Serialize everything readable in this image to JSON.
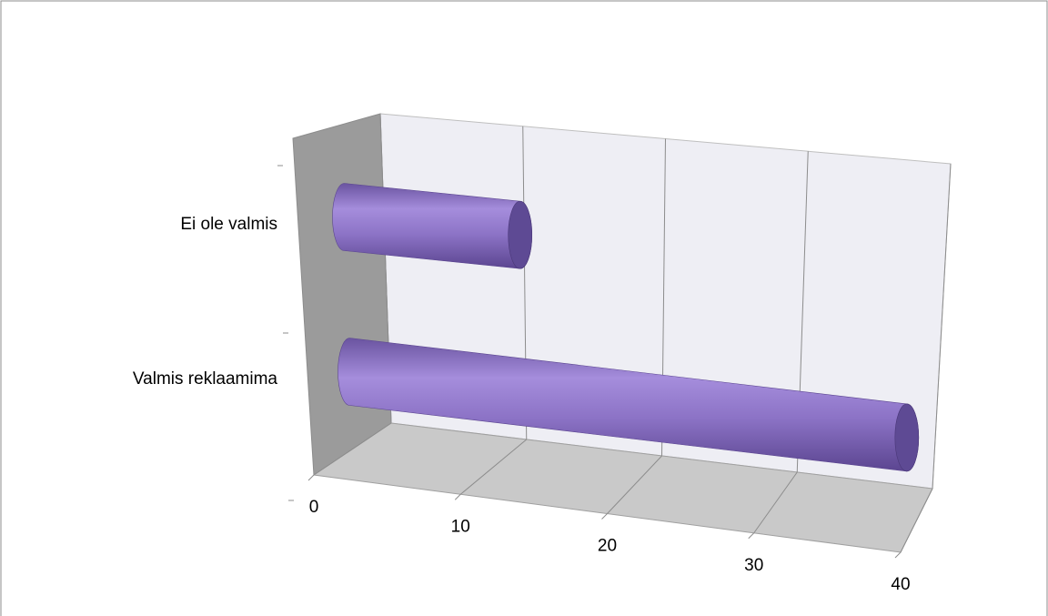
{
  "chart_data": {
    "type": "bar3d",
    "orientation": "horizontal",
    "categories": [
      "Valmis reklaamima",
      "Ei ole valmis"
    ],
    "values": [
      39,
      12
    ],
    "color": "#8e72c4",
    "xlim": [
      0,
      40
    ],
    "xticks": [
      0,
      10,
      20,
      30,
      40
    ],
    "grid": true
  }
}
